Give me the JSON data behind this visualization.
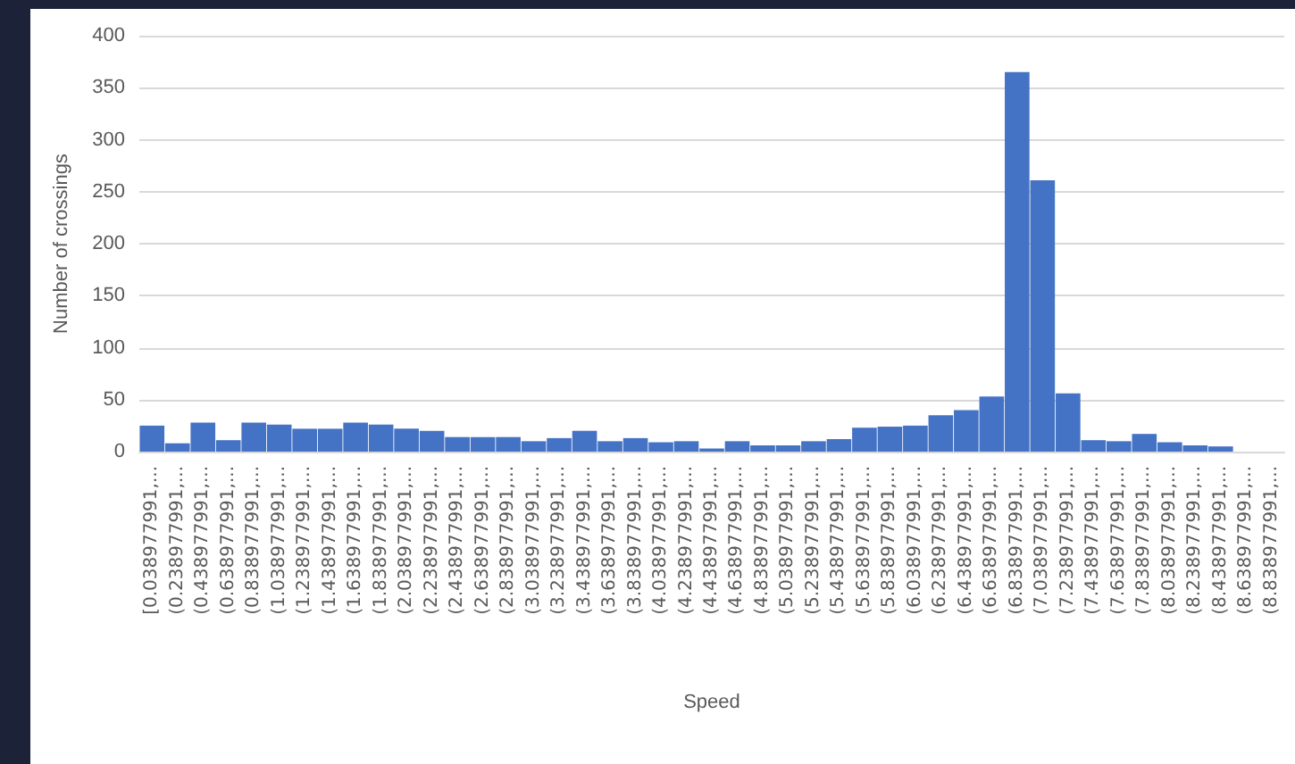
{
  "chart_data": {
    "type": "bar",
    "xlabel": "Speed",
    "ylabel": "Number of crossings",
    "categories": [
      "[0.038977991,...",
      "(0.238977991,...",
      "(0.438977991,...",
      "(0.638977991,...",
      "(0.838977991,...",
      "(1.038977991,...",
      "(1.238977991,...",
      "(1.438977991,...",
      "(1.638977991,...",
      "(1.838977991,...",
      "(2.038977991,...",
      "(2.238977991,...",
      "(2.438977991,...",
      "(2.638977991,...",
      "(2.838977991,...",
      "(3.038977991,...",
      "(3.238977991,...",
      "(3.438977991,...",
      "(3.638977991,...",
      "(3.838977991,...",
      "(4.038977991,...",
      "(4.238977991,...",
      "(4.438977991,...",
      "(4.638977991,...",
      "(4.838977991,...",
      "(5.038977991,...",
      "(5.238977991,...",
      "(5.438977991,...",
      "(5.638977991,...",
      "(5.838977991,...",
      "(6.038977991,...",
      "(6.238977991,...",
      "(6.438977991,...",
      "(6.638977991,...",
      "(6.838977991,...",
      "(7.038977991,...",
      "(7.238977991,...",
      "(7.438977991,...",
      "(7.638977991,...",
      "(7.838977991,...",
      "(8.038977991,...",
      "(8.238977991,...",
      "(8.438977991,...",
      "(8.638977991,...",
      "(8.838977991,..."
    ],
    "values": [
      25,
      8,
      28,
      11,
      28,
      26,
      22,
      22,
      28,
      26,
      22,
      20,
      14,
      14,
      14,
      10,
      13,
      20,
      10,
      13,
      9,
      10,
      3,
      10,
      6,
      6,
      10,
      12,
      23,
      24,
      25,
      35,
      40,
      53,
      365,
      261,
      56,
      11,
      10,
      17,
      9,
      6,
      5,
      0,
      0
    ],
    "color": "#4472c4",
    "ylim": [
      0,
      400
    ],
    "yticks": [
      0,
      50,
      100,
      150,
      200,
      250,
      300,
      350,
      400
    ],
    "grid": "y"
  }
}
